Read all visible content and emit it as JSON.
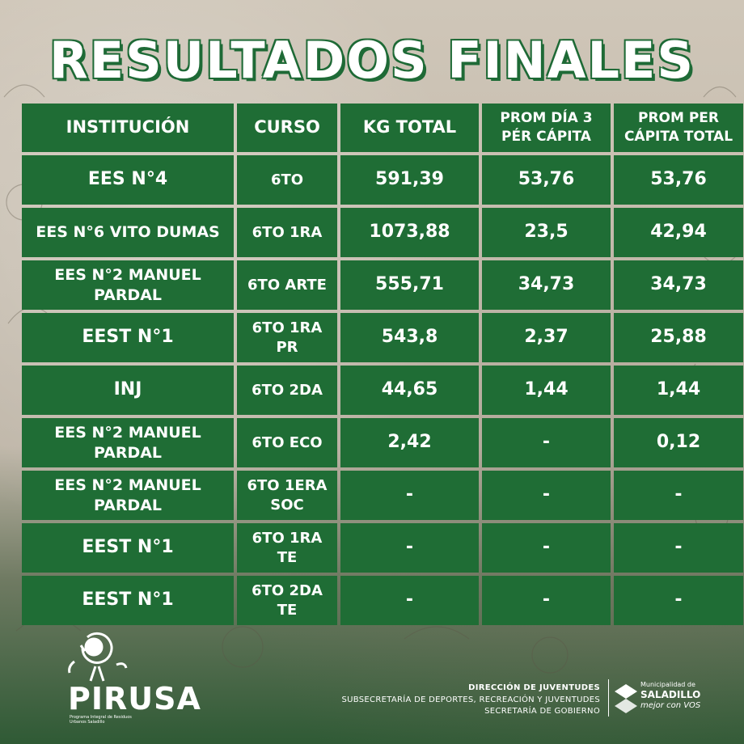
{
  "title": "RESULTADOS FINALES",
  "table": {
    "headers": [
      "INSTITUCIÓN",
      "CURSO",
      "KG TOTAL",
      "PROM DÍA 3 PÉR CÁPITA",
      "PROM PER CÁPITA TOTAL"
    ],
    "rows": [
      [
        "EES N°4",
        "6TO",
        "591,39",
        "53,76",
        "53,76"
      ],
      [
        "EES N°6 VITO DUMAS",
        "6TO 1RA",
        "1073,88",
        "23,5",
        "42,94"
      ],
      [
        "EES N°2 MANUEL PARDAL",
        "6TO ARTE",
        "555,71",
        "34,73",
        "34,73"
      ],
      [
        "EEST N°1",
        "6TO 1RA PR",
        "543,8",
        "2,37",
        "25,88"
      ],
      [
        "INJ",
        "6TO 2DA",
        "44,65",
        "1,44",
        "1,44"
      ],
      [
        "EES N°2 MANUEL PARDAL",
        "6TO ECO",
        "2,42",
        "-",
        "0,12"
      ],
      [
        "EES N°2 MANUEL PARDAL",
        "6TO 1ERA SOC",
        "-",
        "-",
        "-"
      ],
      [
        "EEST N°1",
        "6TO 1RA TE",
        "-",
        "-",
        "-"
      ],
      [
        "EEST N°1",
        "6TO 2DA TE",
        "-",
        "-",
        "-"
      ]
    ]
  },
  "footer": {
    "program_name": "PIRUSA",
    "program_subtitle": "Programa Integral de Residuos Urbanos Saladillo",
    "credits": [
      "DIRECCIÓN DE JUVENTUDES",
      "SUBSECRETARÍA DE DEPORTES, RECREACIÓN Y JUVENTUDES",
      "SECRETARÍA DE GOBIERNO"
    ],
    "municipality_prefix": "Municipalidad de",
    "municipality_name": "SALADILLO",
    "slogan": "mejor con VOS"
  },
  "colors": {
    "cell_green": "#1f6d35",
    "title_outline": "#1e6a36",
    "text": "#ffffff"
  }
}
